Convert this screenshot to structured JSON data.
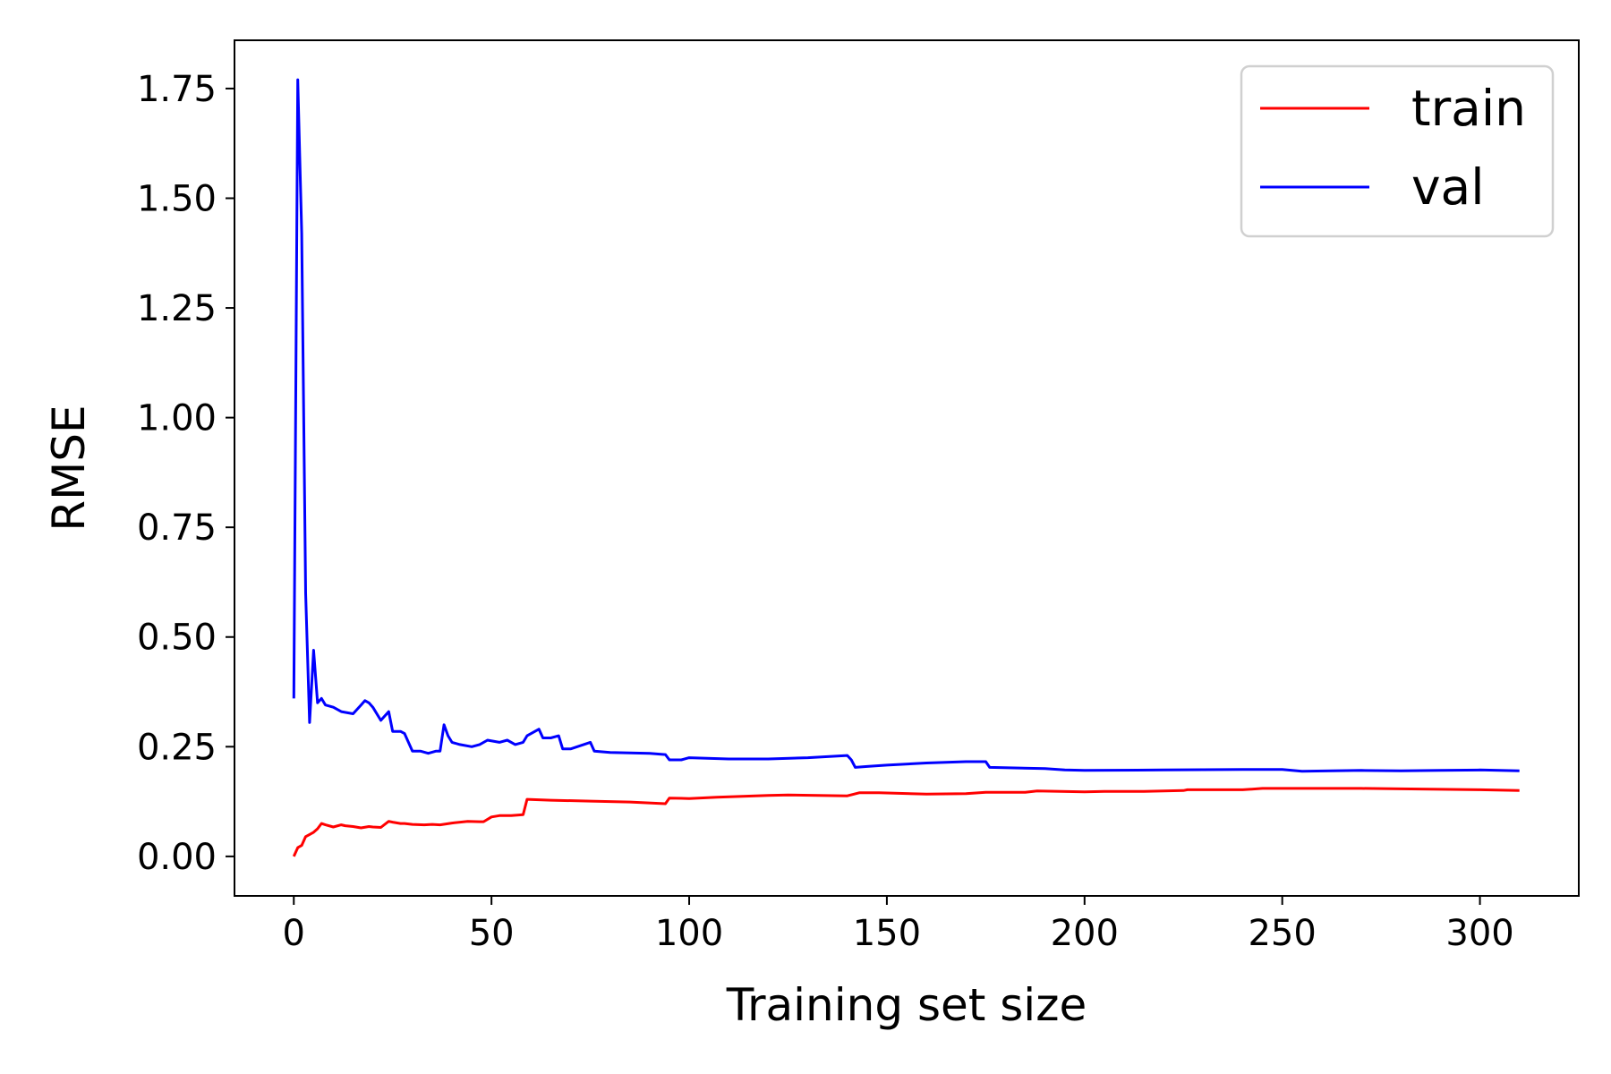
{
  "chart_data": {
    "type": "line",
    "title": "",
    "xlabel": "Training set size",
    "ylabel": "RMSE",
    "xlim": [
      -15,
      325
    ],
    "ylim": [
      -0.09,
      1.86
    ],
    "grid": false,
    "legend_position": "top-right",
    "xticks": [
      0,
      50,
      100,
      150,
      200,
      250,
      300
    ],
    "xtick_labels": [
      "0",
      "50",
      "100",
      "150",
      "200",
      "250",
      "300"
    ],
    "yticks": [
      0,
      0.25,
      0.5,
      0.75,
      1.0,
      1.25,
      1.5,
      1.75
    ],
    "ytick_labels": [
      "0.00",
      "0.25",
      "0.50",
      "0.75",
      "1.00",
      "1.25",
      "1.50",
      "1.75"
    ],
    "series": [
      {
        "name": "train",
        "color": "#ff0000",
        "x": [
          0,
          1,
          2,
          3,
          4,
          5,
          6,
          7,
          8,
          10,
          12,
          13,
          15,
          17,
          19,
          20,
          22,
          24,
          25,
          27,
          28,
          30,
          33,
          35,
          37,
          40,
          44,
          47,
          48,
          50,
          52,
          55,
          58,
          59,
          65,
          75,
          85,
          94,
          95,
          100,
          107,
          120,
          125,
          140,
          143,
          148,
          160,
          170,
          175,
          185,
          188,
          200,
          205,
          215,
          225,
          226,
          240,
          245,
          255,
          265,
          270,
          280,
          290,
          300,
          310
        ],
        "values": [
          0.0,
          0.02,
          0.025,
          0.045,
          0.05,
          0.055,
          0.063,
          0.075,
          0.072,
          0.067,
          0.072,
          0.07,
          0.068,
          0.065,
          0.068,
          0.067,
          0.066,
          0.08,
          0.078,
          0.075,
          0.075,
          0.073,
          0.072,
          0.073,
          0.072,
          0.076,
          0.08,
          0.079,
          0.079,
          0.09,
          0.093,
          0.093,
          0.095,
          0.13,
          0.128,
          0.126,
          0.124,
          0.12,
          0.133,
          0.132,
          0.135,
          0.139,
          0.14,
          0.138,
          0.145,
          0.145,
          0.142,
          0.143,
          0.146,
          0.146,
          0.149,
          0.147,
          0.148,
          0.148,
          0.15,
          0.152,
          0.152,
          0.155,
          0.155,
          0.155,
          0.155,
          0.154,
          0.153,
          0.152,
          0.15
        ]
      },
      {
        "name": "val",
        "color": "#0000ff",
        "x": [
          0,
          1,
          2,
          3,
          4,
          5,
          6,
          7,
          8,
          10,
          12,
          15,
          17,
          18,
          19,
          20,
          22,
          23,
          24,
          25,
          27,
          28,
          30,
          32,
          34,
          36,
          37,
          38,
          39,
          40,
          42,
          45,
          47,
          49,
          52,
          54,
          56,
          58,
          59,
          61,
          62,
          63,
          65,
          67,
          68,
          70,
          75,
          76,
          80,
          90,
          94,
          95,
          98,
          100,
          110,
          120,
          130,
          140,
          141,
          142,
          145,
          150,
          160,
          170,
          175,
          176,
          190,
          195,
          200,
          220,
          240,
          250,
          255,
          270,
          280,
          290,
          300,
          310
        ],
        "values": [
          0.36,
          1.77,
          1.42,
          0.6,
          0.305,
          0.47,
          0.35,
          0.36,
          0.345,
          0.34,
          0.33,
          0.325,
          0.345,
          0.355,
          0.35,
          0.34,
          0.31,
          0.32,
          0.33,
          0.285,
          0.285,
          0.28,
          0.24,
          0.24,
          0.235,
          0.24,
          0.24,
          0.3,
          0.275,
          0.26,
          0.255,
          0.25,
          0.255,
          0.265,
          0.26,
          0.265,
          0.255,
          0.26,
          0.275,
          0.285,
          0.29,
          0.27,
          0.27,
          0.275,
          0.245,
          0.245,
          0.26,
          0.24,
          0.237,
          0.235,
          0.232,
          0.22,
          0.22,
          0.225,
          0.222,
          0.222,
          0.225,
          0.23,
          0.22,
          0.203,
          0.205,
          0.208,
          0.213,
          0.216,
          0.216,
          0.203,
          0.2,
          0.197,
          0.196,
          0.197,
          0.198,
          0.198,
          0.194,
          0.196,
          0.195,
          0.196,
          0.197,
          0.195
        ]
      }
    ]
  }
}
